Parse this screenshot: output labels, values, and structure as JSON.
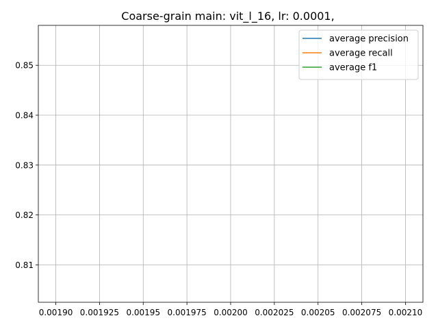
{
  "chart_data": {
    "type": "line",
    "title": "Coarse-grain main: vit_l_16, lr: 0.0001,",
    "xlabel": "",
    "ylabel": "",
    "xlim": [
      0.00189,
      0.00211
    ],
    "ylim": [
      0.8025,
      0.858
    ],
    "x_ticks": [
      0.0019,
      0.001925,
      0.00195,
      0.001975,
      0.002,
      0.002025,
      0.00205,
      0.002075,
      0.0021
    ],
    "x_tick_labels": [
      "0.00190",
      "0.001925",
      "0.00195",
      "0.001975",
      "0.00200",
      "0.002025",
      "0.00205",
      "0.002075",
      "0.00210"
    ],
    "y_ticks": [
      0.81,
      0.82,
      0.83,
      0.84,
      0.85
    ],
    "y_tick_labels": [
      "0.81",
      "0.82",
      "0.83",
      "0.84",
      "0.85"
    ],
    "grid": true,
    "legend_position": "top-right",
    "series": [
      {
        "name": "average precision",
        "color": "#1f77b4",
        "x": [],
        "y": []
      },
      {
        "name": "average recall",
        "color": "#ff7f0e",
        "x": [],
        "y": []
      },
      {
        "name": "average f1",
        "color": "#2ca02c",
        "x": [],
        "y": []
      }
    ]
  }
}
